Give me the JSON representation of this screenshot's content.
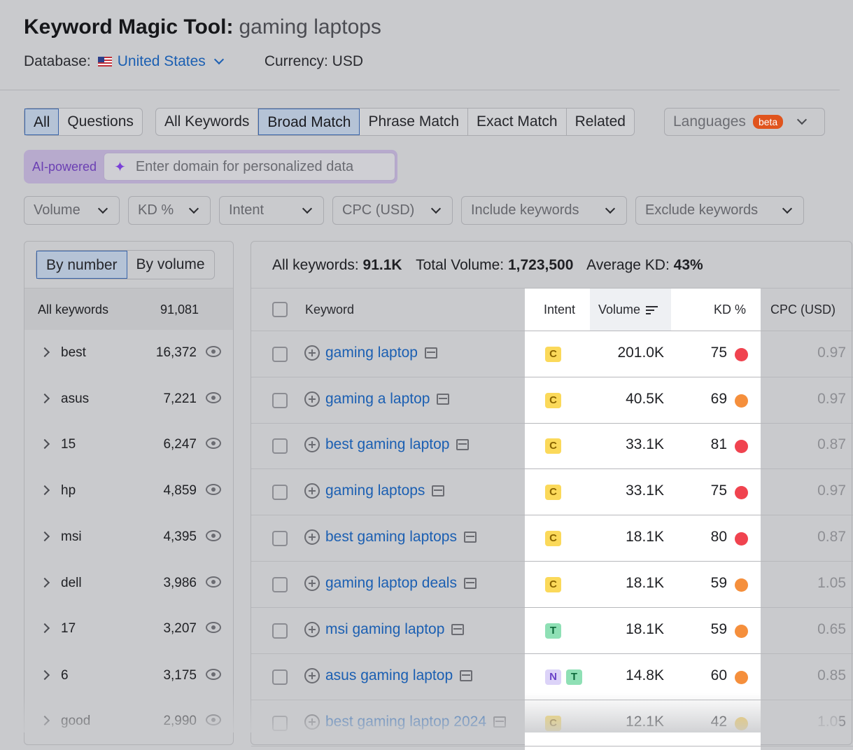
{
  "header": {
    "title": "Keyword Magic Tool:",
    "query": "gaming laptops",
    "database_label": "Database:",
    "database_value": "United States",
    "currency": "Currency: USD"
  },
  "match_tabs": {
    "scope": [
      "All",
      "Questions"
    ],
    "types": [
      "All Keywords",
      "Broad Match",
      "Phrase Match",
      "Exact Match",
      "Related"
    ],
    "active_scope": "All",
    "active_type": "Broad Match",
    "languages_label": "Languages",
    "beta_badge": "beta"
  },
  "ai_bar": {
    "label": "AI-powered",
    "placeholder": "Enter domain for personalized data"
  },
  "filters": [
    "Volume",
    "KD %",
    "Intent",
    "CPC (USD)",
    "Include keywords",
    "Exclude keywords"
  ],
  "groups_panel": {
    "toggle": [
      "By number",
      "By volume"
    ],
    "active_toggle": "By number",
    "all_label": "All keywords",
    "all_count": "91,081",
    "groups": [
      {
        "name": "best",
        "count": "16,372"
      },
      {
        "name": "asus",
        "count": "7,221"
      },
      {
        "name": "15",
        "count": "6,247"
      },
      {
        "name": "hp",
        "count": "4,859"
      },
      {
        "name": "msi",
        "count": "4,395"
      },
      {
        "name": "dell",
        "count": "3,986"
      },
      {
        "name": "17",
        "count": "3,207"
      },
      {
        "name": "6",
        "count": "3,175"
      },
      {
        "name": "good",
        "count": "2,990"
      }
    ]
  },
  "summary": {
    "all_label": "All keywords:",
    "all_value": "91.1K",
    "vol_label": "Total Volume:",
    "vol_value": "1,723,500",
    "kd_label": "Average KD:",
    "kd_value": "43%"
  },
  "table": {
    "headers": {
      "keyword": "Keyword",
      "intent": "Intent",
      "volume": "Volume",
      "kd": "KD %",
      "cpc": "CPC (USD)"
    },
    "rows": [
      {
        "keyword": "gaming laptop",
        "intent": [
          "C"
        ],
        "volume": "201.0K",
        "kd": "75",
        "kd_color": "#f0434f",
        "cpc": "0.97"
      },
      {
        "keyword": "gaming a laptop",
        "intent": [
          "C"
        ],
        "volume": "40.5K",
        "kd": "69",
        "kd_color": "#f58f3c",
        "cpc": "0.97"
      },
      {
        "keyword": "best gaming laptop",
        "intent": [
          "C"
        ],
        "volume": "33.1K",
        "kd": "81",
        "kd_color": "#f0434f",
        "cpc": "0.87"
      },
      {
        "keyword": "gaming laptops",
        "intent": [
          "C"
        ],
        "volume": "33.1K",
        "kd": "75",
        "kd_color": "#f0434f",
        "cpc": "0.97"
      },
      {
        "keyword": "best gaming laptops",
        "intent": [
          "C"
        ],
        "volume": "18.1K",
        "kd": "80",
        "kd_color": "#f0434f",
        "cpc": "0.87"
      },
      {
        "keyword": "gaming laptop deals",
        "intent": [
          "C"
        ],
        "volume": "18.1K",
        "kd": "59",
        "kd_color": "#f58f3c",
        "cpc": "1.05"
      },
      {
        "keyword": "msi gaming laptop",
        "intent": [
          "T"
        ],
        "volume": "18.1K",
        "kd": "59",
        "kd_color": "#f58f3c",
        "cpc": "0.65"
      },
      {
        "keyword": "asus gaming laptop",
        "intent": [
          "N",
          "T"
        ],
        "volume": "14.8K",
        "kd": "60",
        "kd_color": "#f58f3c",
        "cpc": "0.85"
      },
      {
        "keyword": "best gaming laptop 2024",
        "intent": [
          "C"
        ],
        "volume": "12.1K",
        "kd": "42",
        "kd_color": "#f7c948",
        "cpc": "1.05"
      }
    ]
  }
}
